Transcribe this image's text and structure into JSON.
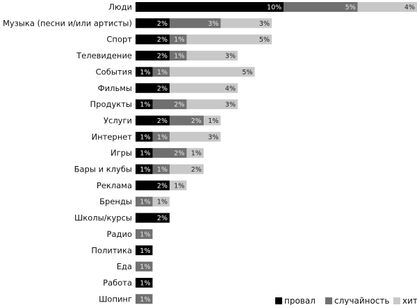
{
  "chart_data": {
    "type": "bar",
    "orientation": "horizontal",
    "stacked": true,
    "title": "",
    "xlabel": "",
    "ylabel": "",
    "grid": false,
    "legend_position": "bottom-right",
    "unit": "%",
    "categories": [
      "Люди",
      "Музыка (песни и/или артисты)",
      "Спорт",
      "Телевидение",
      "События",
      "Фильмы",
      "Продукты",
      "Услуги",
      "Интернет",
      "Игры",
      "Бары и клубы",
      "Реклама",
      "Бренды",
      "Школы/курсы",
      "Радио",
      "Политика",
      "Еда",
      "Работа",
      "Шопинг"
    ],
    "series": [
      {
        "name": "провал",
        "color": "#000000",
        "values": [
          10,
          2,
          2,
          2,
          1,
          2,
          1,
          2,
          1,
          1,
          1,
          2,
          0,
          2,
          0,
          1,
          0,
          1,
          0
        ]
      },
      {
        "name": "случайность",
        "color": "#707070",
        "values": [
          5,
          3,
          1,
          1,
          1,
          0,
          2,
          2,
          1,
          2,
          1,
          0,
          1,
          0,
          1,
          0,
          1,
          0,
          1
        ]
      },
      {
        "name": "хит",
        "color": "#c8c8c8",
        "values": [
          4,
          3,
          5,
          3,
          5,
          4,
          3,
          1,
          3,
          1,
          2,
          1,
          1,
          0,
          0,
          0,
          0,
          0,
          0
        ]
      }
    ]
  }
}
